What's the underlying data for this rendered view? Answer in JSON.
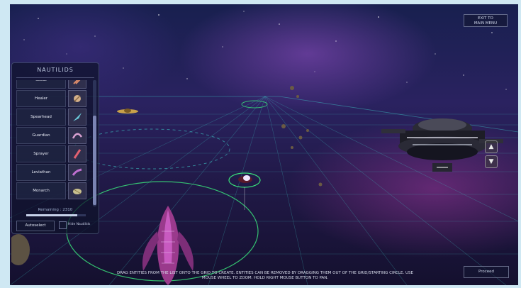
{
  "panel": {
    "title": "NAUTILIDS",
    "items": [
      {
        "label": "Scout",
        "icon": "scout-creature-icon"
      },
      {
        "label": "Healer",
        "icon": "healer-creature-icon"
      },
      {
        "label": "Spearhead",
        "icon": "spearhead-creature-icon"
      },
      {
        "label": "Guardian",
        "icon": "guardian-creature-icon"
      },
      {
        "label": "Sprayer",
        "icon": "sprayer-creature-icon"
      },
      {
        "label": "Leviathan",
        "icon": "leviathan-creature-icon"
      },
      {
        "label": "Monarch",
        "icon": "monarch-creature-icon"
      }
    ],
    "remaining_label": "Remaining : 2310",
    "remaining_progress": 0.86,
    "autoselect_label": "Autoselect",
    "hide_label": "Hide Nautilids",
    "hide_checked": false
  },
  "top_right": {
    "exit_line1": "EXIT TO",
    "exit_line2": "MAIN MENU"
  },
  "bottom_right": {
    "proceed_label": "Proceed"
  },
  "camera": {
    "up_icon": "chevron-up-icon",
    "down_icon": "chevron-down-icon"
  },
  "instructions": {
    "line1": "DRAG ENTITIES FROM THE LIST ONTO THE GRID TO CREATE. ENTITIES CAN BE REMOVED BY DRAGGING THEM OUT OF THE GRID/STARTING CIRCLE. USE",
    "line2": "MOUSE WHEEL TO ZOOM. HOLD RIGHT MOUSE BUTTON TO PAN."
  },
  "colors": {
    "grid": "#3ec7c7",
    "selection_ring": "#39e07a",
    "accent_purple": "#c04ac8"
  }
}
